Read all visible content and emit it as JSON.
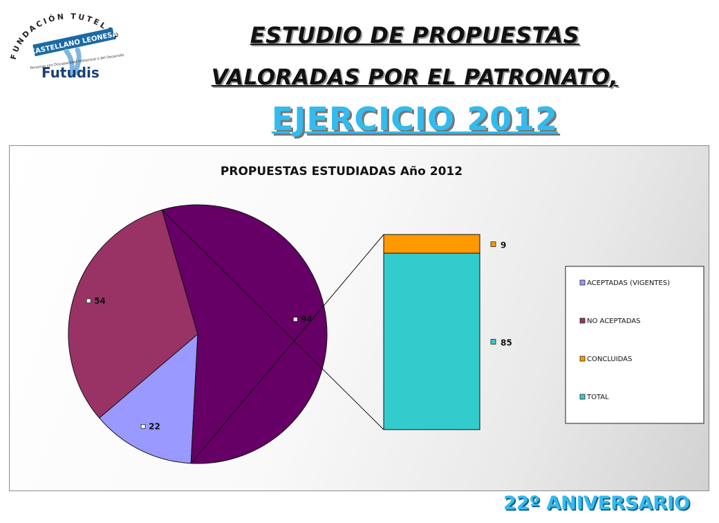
{
  "header": {
    "logo": {
      "arc_text": "FUNDACIÓN TUTELAR",
      "banner_text": "CASTELLANO LEONESA",
      "tagline": "Personas con Discapacidad Intelectual o del Desarrollo",
      "brand": "Futudis",
      "brand_color": "#1a3f7a",
      "banner_color": "#1b6aa6"
    },
    "title_line1": "ESTUDIO DE PROPUESTAS",
    "title_line2": "VALORADAS POR EL PATRONATO,",
    "title_line3": "EJERCICIO 2012"
  },
  "footer": {
    "anniversary": "22º ANIVERSARIO"
  },
  "chart_data": {
    "type": "pie",
    "subtype": "pie-of-bar",
    "title": "PROPUESTAS ESTUDIADAS Año 2012",
    "slices": [
      {
        "name": "ACEPTADAS (VIGENTES)",
        "value": 22,
        "color": "#9999ff"
      },
      {
        "name": "NO ACEPTADAS",
        "value": 54,
        "color": "#993366"
      },
      {
        "name": "TOTAL",
        "value": 94,
        "color": "#660066"
      }
    ],
    "secondary_bar": [
      {
        "name": "TOTAL",
        "value": 85,
        "color": "#33cccc"
      },
      {
        "name": "CONCLUIDAS",
        "value": 9,
        "color": "#ff9900"
      }
    ],
    "legend": {
      "position": "right",
      "entries": [
        {
          "label": "ACEPTADAS (VIGENTES)",
          "color": "#9999ff"
        },
        {
          "label": "NO ACEPTADAS",
          "color": "#993366"
        },
        {
          "label": "CONCLUIDAS",
          "color": "#ff9900"
        },
        {
          "label": "TOTAL",
          "color": "#33cccc"
        }
      ]
    }
  }
}
